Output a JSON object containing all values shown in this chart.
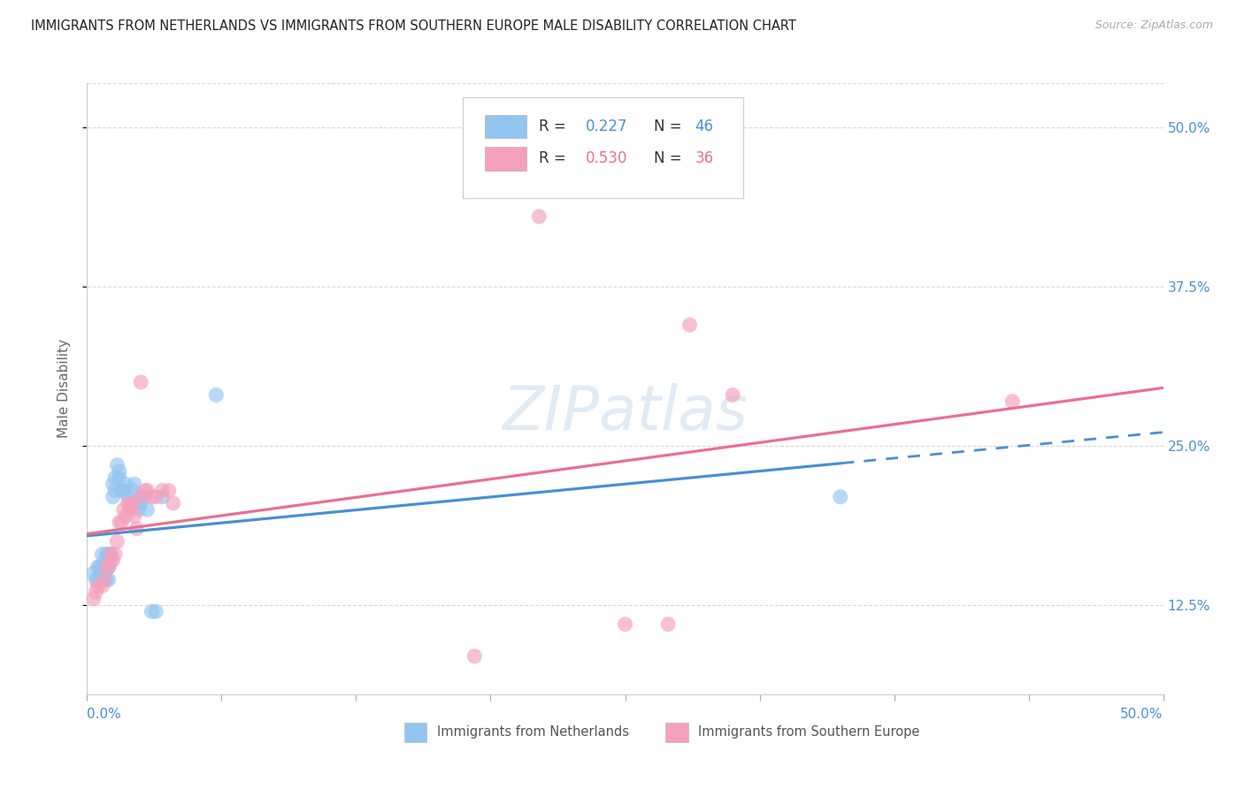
{
  "title": "IMMIGRANTS FROM NETHERLANDS VS IMMIGRANTS FROM SOUTHERN EUROPE MALE DISABILITY CORRELATION CHART",
  "source": "Source: ZipAtlas.com",
  "ylabel": "Male Disability",
  "xlim": [
    0.0,
    0.5
  ],
  "ylim": [
    0.055,
    0.535
  ],
  "x_tick_vals": [
    0.0,
    0.0625,
    0.125,
    0.1875,
    0.25,
    0.3125,
    0.375,
    0.4375,
    0.5
  ],
  "y_tick_vals": [
    0.125,
    0.25,
    0.375,
    0.5
  ],
  "y_tick_labels": [
    "12.5%",
    "25.0%",
    "37.5%",
    "50.0%"
  ],
  "legend_R1": "0.227",
  "legend_N1": "46",
  "legend_R2": "0.530",
  "legend_N2": "36",
  "netherlands_color": "#92c5f0",
  "southern_europe_color": "#f5a0bc",
  "netherlands_line_color": "#4a8fd4",
  "southern_europe_line_color": "#e87090",
  "netherlands_label": "Immigrants from Netherlands",
  "southern_europe_label": "Immigrants from Southern Europe",
  "watermark": "ZIPatlas",
  "background_color": "#ffffff",
  "grid_color": "#d8d8d8",
  "title_color": "#222222",
  "axis_label_color": "#666666",
  "right_tick_color": "#4a8fd4",
  "nl_x": [
    0.003,
    0.004,
    0.005,
    0.005,
    0.006,
    0.006,
    0.007,
    0.007,
    0.007,
    0.008,
    0.008,
    0.008,
    0.009,
    0.009,
    0.009,
    0.009,
    0.01,
    0.01,
    0.01,
    0.01,
    0.011,
    0.011,
    0.012,
    0.012,
    0.013,
    0.013,
    0.014,
    0.015,
    0.015,
    0.016,
    0.017,
    0.018,
    0.019,
    0.02,
    0.021,
    0.022,
    0.023,
    0.024,
    0.025,
    0.026,
    0.028,
    0.03,
    0.032,
    0.035,
    0.06,
    0.35
  ],
  "nl_y": [
    0.15,
    0.145,
    0.155,
    0.145,
    0.155,
    0.15,
    0.145,
    0.165,
    0.155,
    0.155,
    0.16,
    0.145,
    0.165,
    0.155,
    0.145,
    0.155,
    0.155,
    0.165,
    0.155,
    0.145,
    0.165,
    0.16,
    0.21,
    0.22,
    0.225,
    0.215,
    0.235,
    0.23,
    0.225,
    0.215,
    0.215,
    0.22,
    0.21,
    0.205,
    0.215,
    0.22,
    0.205,
    0.2,
    0.205,
    0.21,
    0.2,
    0.12,
    0.12,
    0.21,
    0.29,
    0.21
  ],
  "se_x": [
    0.003,
    0.004,
    0.005,
    0.007,
    0.008,
    0.009,
    0.01,
    0.011,
    0.012,
    0.013,
    0.014,
    0.015,
    0.016,
    0.017,
    0.018,
    0.019,
    0.02,
    0.021,
    0.022,
    0.023,
    0.025,
    0.027,
    0.03,
    0.032,
    0.035,
    0.038,
    0.3,
    0.43,
    0.25,
    0.27,
    0.18,
    0.028,
    0.025,
    0.04,
    0.28,
    0.21
  ],
  "se_y": [
    0.13,
    0.135,
    0.14,
    0.14,
    0.145,
    0.155,
    0.155,
    0.165,
    0.16,
    0.165,
    0.175,
    0.19,
    0.19,
    0.2,
    0.195,
    0.205,
    0.2,
    0.205,
    0.195,
    0.185,
    0.21,
    0.215,
    0.21,
    0.21,
    0.215,
    0.215,
    0.29,
    0.285,
    0.11,
    0.11,
    0.085,
    0.215,
    0.3,
    0.205,
    0.345,
    0.43
  ]
}
